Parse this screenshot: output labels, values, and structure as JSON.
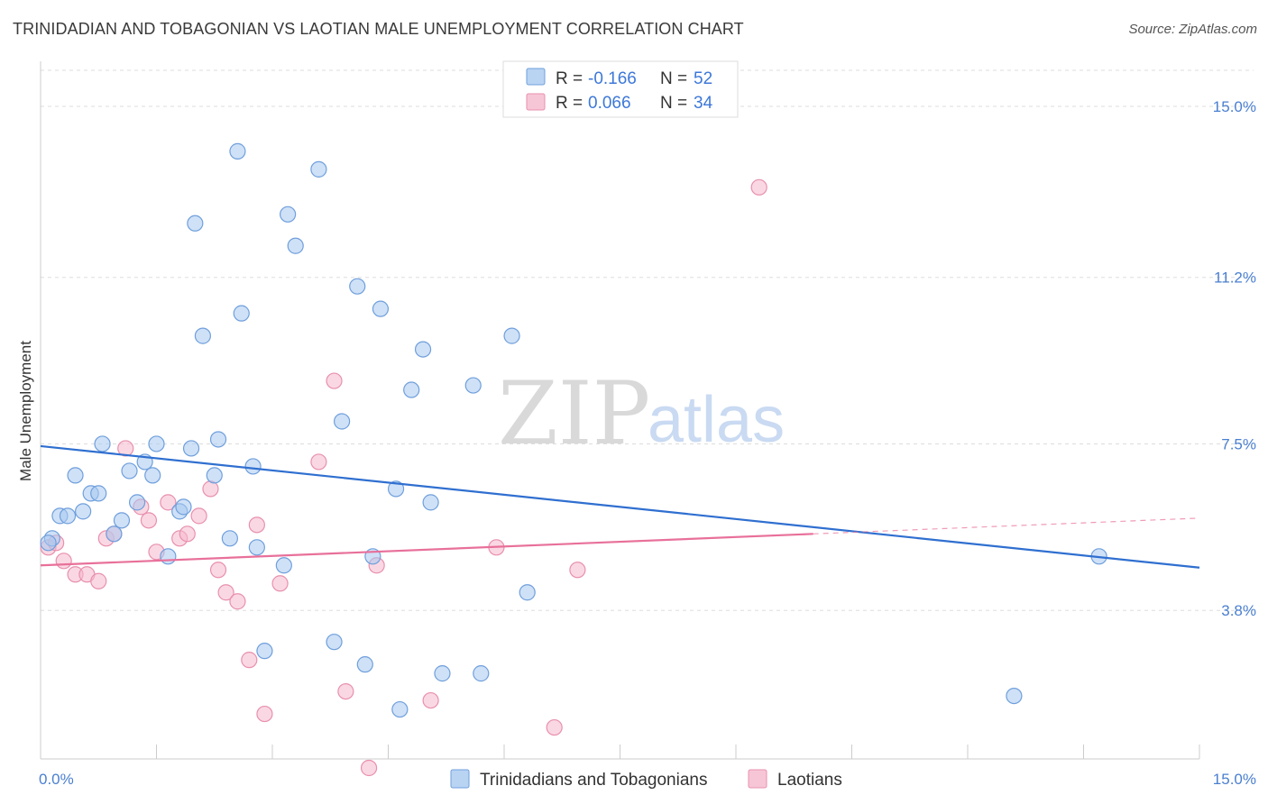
{
  "header": {
    "title": "TRINIDADIAN AND TOBAGONIAN VS LAOTIAN MALE UNEMPLOYMENT CORRELATION CHART",
    "source": "Source: ZipAtlas.com"
  },
  "watermark": {
    "zip": "ZIP",
    "atlas": "atlas"
  },
  "legend": {
    "rows": [
      {
        "r_label": "R =",
        "r_value": "-0.166",
        "n_label": "N =",
        "n_value": "52",
        "color": "#a8c8f0"
      },
      {
        "r_label": "R =",
        "r_value": "0.066",
        "n_label": "N =",
        "n_value": "34",
        "color": "#f5b8cc"
      }
    ]
  },
  "chart_data": {
    "type": "scatter",
    "title": "TRINIDADIAN AND TOBAGONIAN VS LAOTIAN MALE UNEMPLOYMENT CORRELATION CHART",
    "xlabel": "",
    "ylabel": "Male Unemployment",
    "xlim": [
      0,
      15
    ],
    "ylim": [
      0.5,
      15.8
    ],
    "x_tick_labels": [
      "0.0%",
      "15.0%"
    ],
    "y_ticks": [
      3.8,
      7.5,
      11.2,
      15.0
    ],
    "y_tick_labels": [
      "3.8%",
      "7.5%",
      "11.2%",
      "15.0%"
    ],
    "grid": true,
    "legend_position": "top-center",
    "series": [
      {
        "name": "Trinidadians and Tobagonians",
        "color": "#a8c8f0",
        "stroke": "#6f9fdc",
        "line_color": "#2f6fd0",
        "trend": {
          "x": [
            0,
            15
          ],
          "y": [
            7.45,
            4.75
          ]
        },
        "points": [
          [
            0.15,
            5.4
          ],
          [
            0.25,
            5.9
          ],
          [
            0.35,
            5.9
          ],
          [
            0.45,
            6.8
          ],
          [
            0.55,
            6.0
          ],
          [
            0.65,
            6.4
          ],
          [
            0.75,
            6.4
          ],
          [
            0.8,
            7.5
          ],
          [
            0.95,
            5.5
          ],
          [
            1.05,
            5.8
          ],
          [
            1.15,
            6.9
          ],
          [
            1.25,
            6.2
          ],
          [
            1.35,
            7.1
          ],
          [
            1.45,
            6.8
          ],
          [
            1.5,
            7.5
          ],
          [
            1.65,
            5.0
          ],
          [
            1.8,
            6.0
          ],
          [
            1.85,
            6.1
          ],
          [
            1.95,
            7.4
          ],
          [
            2.0,
            12.4
          ],
          [
            2.1,
            9.9
          ],
          [
            2.25,
            6.8
          ],
          [
            2.3,
            7.6
          ],
          [
            2.45,
            5.4
          ],
          [
            2.55,
            14.0
          ],
          [
            2.6,
            10.4
          ],
          [
            2.75,
            7.0
          ],
          [
            2.8,
            5.2
          ],
          [
            2.9,
            2.9
          ],
          [
            3.15,
            4.8
          ],
          [
            3.2,
            12.6
          ],
          [
            3.3,
            11.9
          ],
          [
            3.6,
            13.6
          ],
          [
            3.8,
            3.1
          ],
          [
            3.9,
            8.0
          ],
          [
            4.1,
            11.0
          ],
          [
            4.2,
            2.6
          ],
          [
            4.3,
            5.0
          ],
          [
            4.4,
            10.5
          ],
          [
            4.65,
            1.6
          ],
          [
            4.8,
            8.7
          ],
          [
            4.6,
            6.5
          ],
          [
            4.95,
            9.6
          ],
          [
            5.05,
            6.2
          ],
          [
            5.2,
            2.4
          ],
          [
            5.6,
            8.8
          ],
          [
            5.7,
            2.4
          ],
          [
            6.1,
            9.9
          ],
          [
            6.3,
            4.2
          ],
          [
            12.6,
            1.9
          ],
          [
            13.7,
            5.0
          ],
          [
            0.1,
            5.3
          ]
        ]
      },
      {
        "name": "Laotians",
        "color": "#f5b8cc",
        "stroke": "#e890ad",
        "line_color": "#e8709a",
        "trend": {
          "x": [
            0,
            10
          ],
          "y": [
            4.8,
            5.5
          ]
        },
        "trend_dashed": {
          "x": [
            10,
            15
          ],
          "y": [
            5.5,
            5.85
          ]
        },
        "points": [
          [
            0.1,
            5.2
          ],
          [
            0.3,
            4.9
          ],
          [
            0.45,
            4.6
          ],
          [
            0.6,
            4.6
          ],
          [
            0.75,
            4.45
          ],
          [
            0.85,
            5.4
          ],
          [
            0.95,
            5.5
          ],
          [
            1.1,
            7.4
          ],
          [
            1.3,
            6.1
          ],
          [
            1.4,
            5.8
          ],
          [
            1.5,
            5.1
          ],
          [
            1.65,
            6.2
          ],
          [
            1.8,
            5.4
          ],
          [
            1.9,
            5.5
          ],
          [
            2.05,
            5.9
          ],
          [
            2.2,
            6.5
          ],
          [
            2.3,
            4.7
          ],
          [
            2.4,
            4.2
          ],
          [
            2.55,
            4.0
          ],
          [
            2.7,
            2.7
          ],
          [
            2.8,
            5.7
          ],
          [
            2.9,
            1.5
          ],
          [
            3.1,
            4.4
          ],
          [
            3.6,
            7.1
          ],
          [
            3.8,
            8.9
          ],
          [
            3.95,
            2.0
          ],
          [
            4.25,
            0.3
          ],
          [
            4.35,
            4.8
          ],
          [
            5.05,
            1.8
          ],
          [
            5.9,
            5.2
          ],
          [
            6.65,
            1.2
          ],
          [
            6.95,
            4.7
          ],
          [
            9.3,
            13.2
          ],
          [
            0.2,
            5.3
          ]
        ]
      }
    ]
  }
}
